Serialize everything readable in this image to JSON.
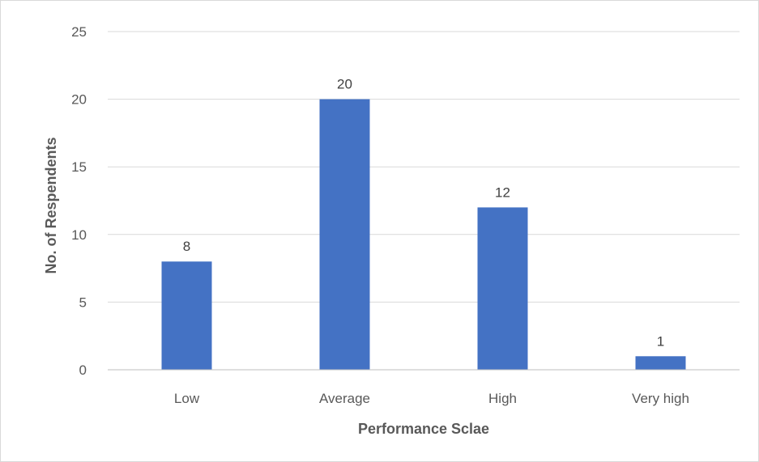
{
  "chart_data": {
    "type": "bar",
    "title": "",
    "categories": [
      "Low",
      "Average",
      "High",
      "Very high"
    ],
    "values": [
      8,
      20,
      12,
      1
    ],
    "xlabel": "Performance Sclae",
    "ylabel": "No. of Respendents",
    "ylim": [
      0,
      25
    ],
    "yticks": [
      0,
      5,
      10,
      15,
      20,
      25
    ],
    "grid": true,
    "legend": "none",
    "data_labels": true,
    "bar_color": "#4472C4",
    "grid_color": "#d9d9d9",
    "axis_color": "#bfbfbf"
  }
}
